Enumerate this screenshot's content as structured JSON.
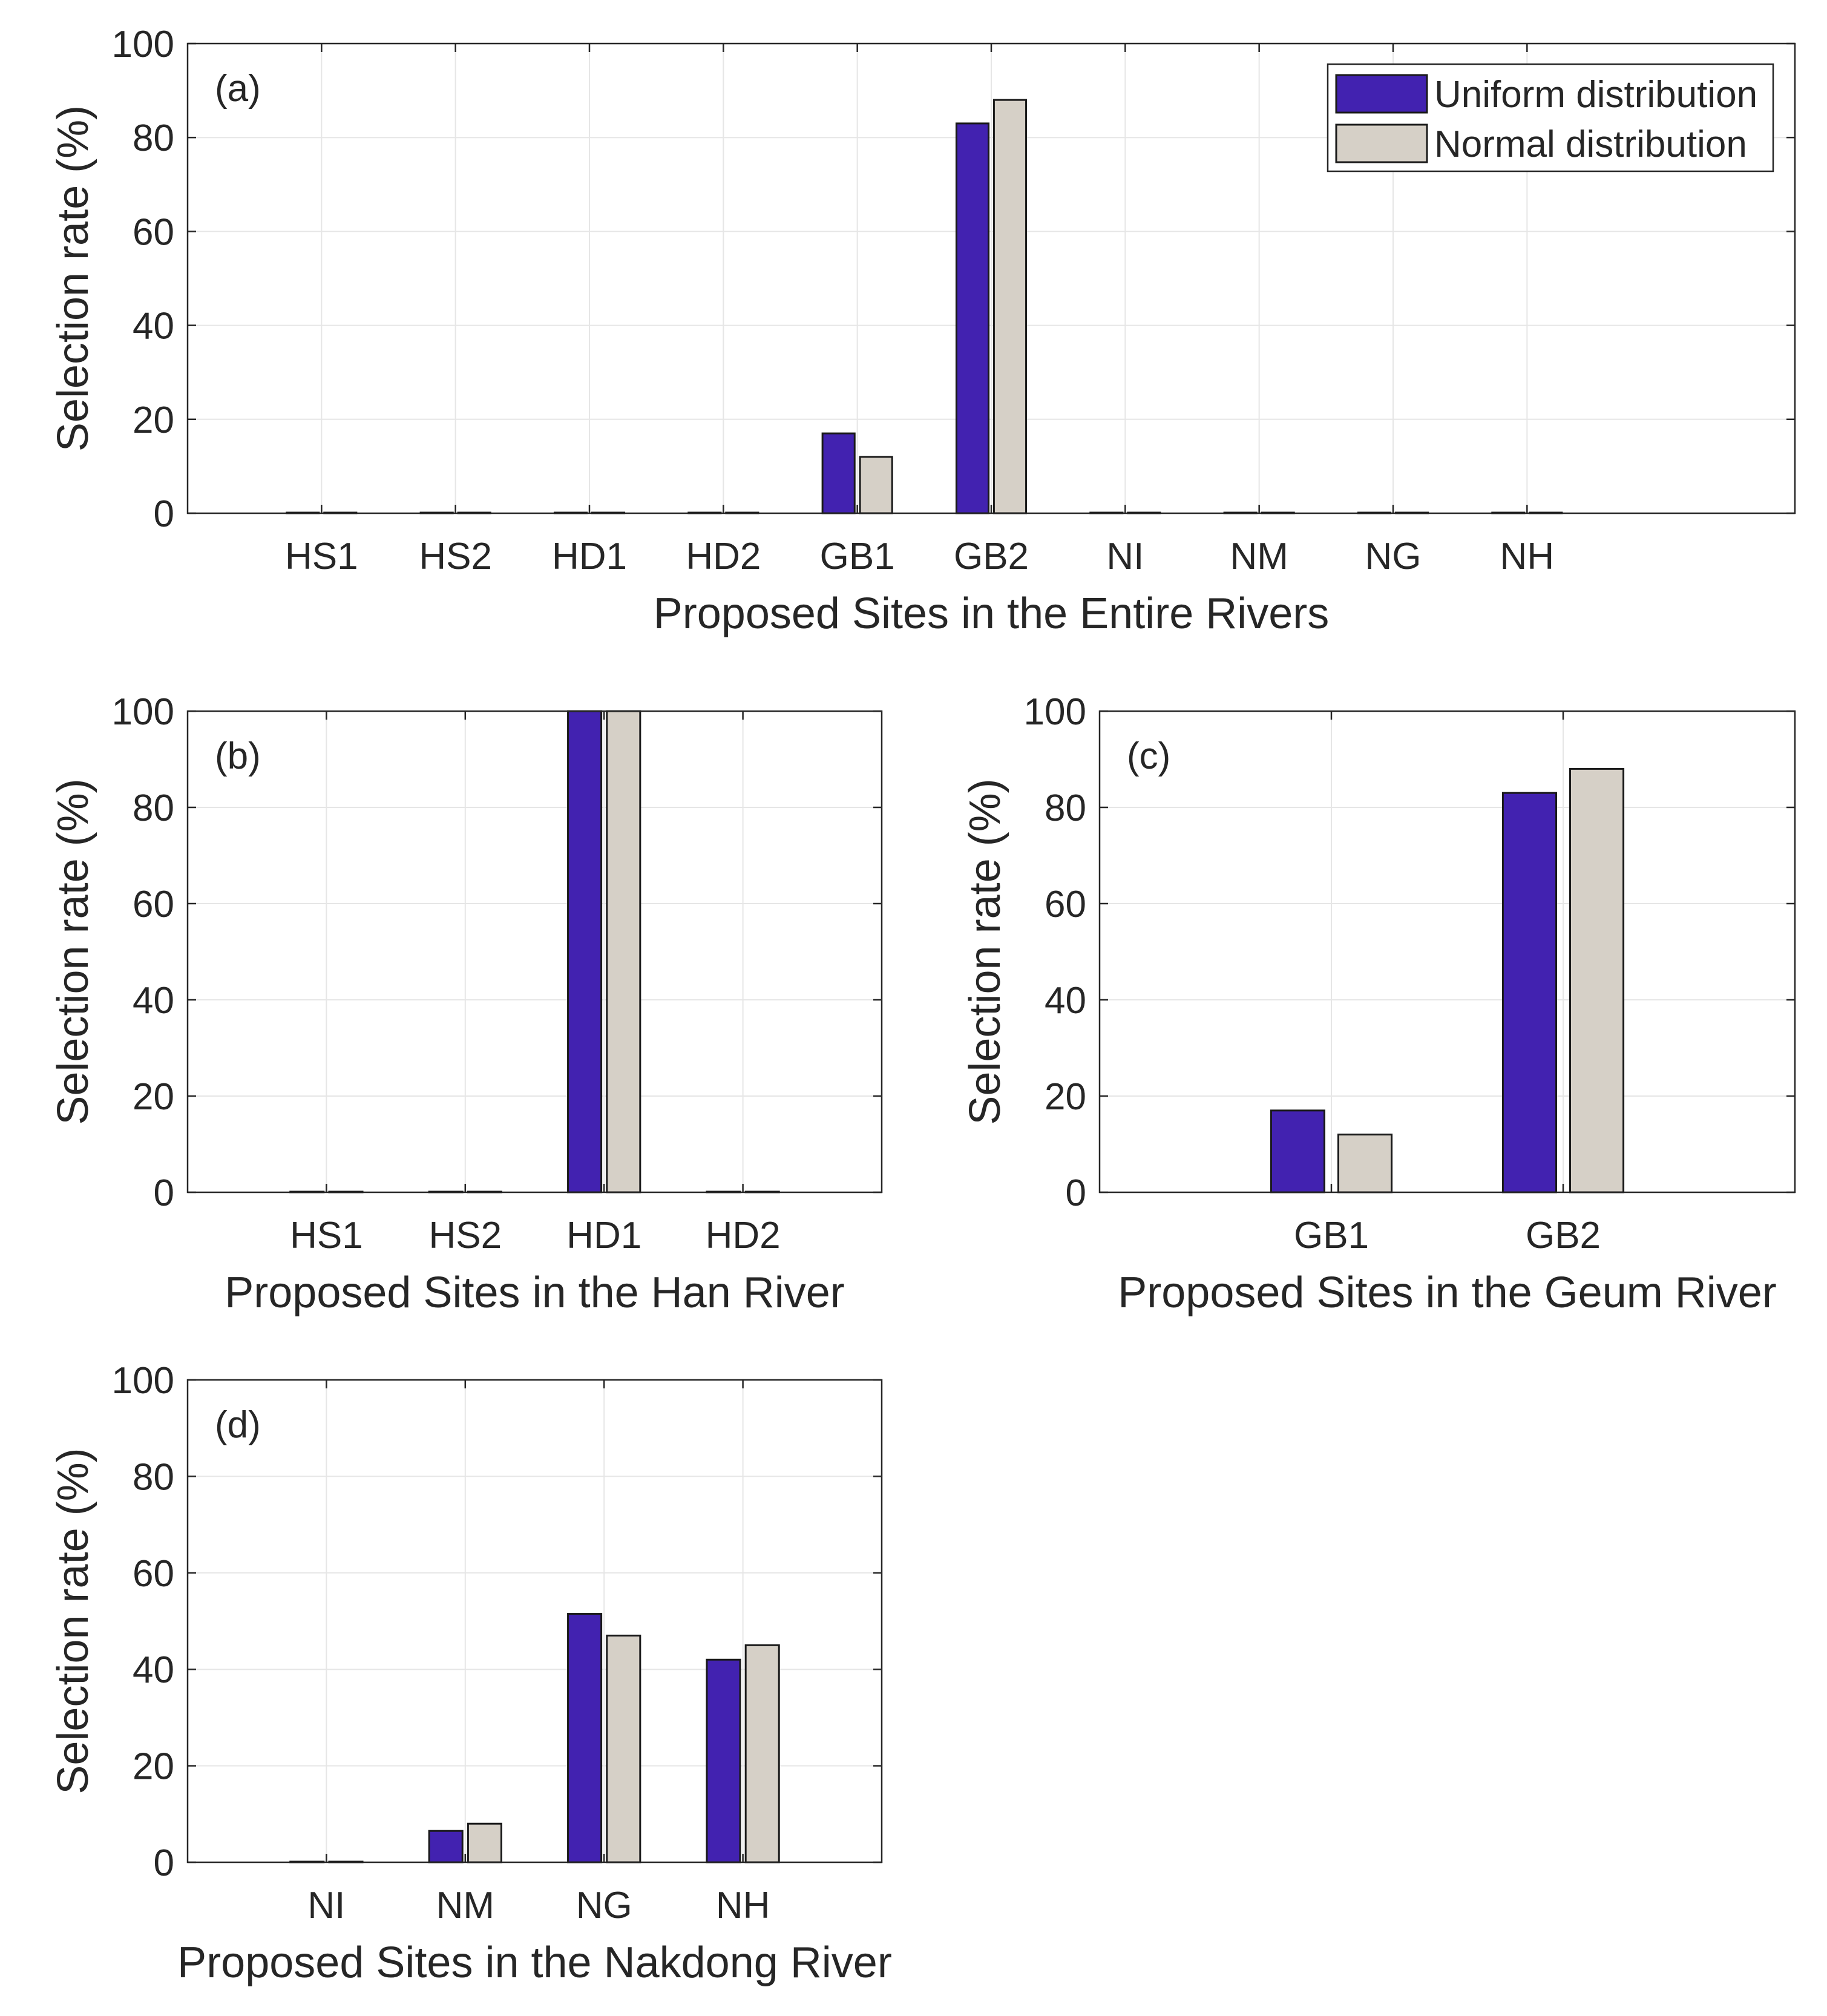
{
  "colors": {
    "uniform": "#4222b0",
    "normal": "#d6d0c7"
  },
  "legend": {
    "uniform_label": "Uniform distribution",
    "normal_label": "Normal distribution"
  },
  "chart_data": [
    {
      "id": "a",
      "type": "bar",
      "panel_label": "(a)",
      "xlabel": "Proposed Sites in the Entire Rivers",
      "ylabel": "Selection rate (%)",
      "ylim": [
        0,
        100
      ],
      "yticks": [
        0,
        20,
        40,
        60,
        80,
        100
      ],
      "grid": true,
      "legend_position": "top-right",
      "categories": [
        "HS1",
        "HS2",
        "HD1",
        "HD2",
        "GB1",
        "GB2",
        "NI",
        "NM",
        "NG",
        "NH"
      ],
      "series": [
        {
          "name": "Uniform distribution",
          "values": [
            0,
            0,
            0,
            0,
            17,
            83,
            0,
            0,
            0,
            0
          ]
        },
        {
          "name": "Normal distribution",
          "values": [
            0,
            0,
            0,
            0,
            12,
            88,
            0,
            0,
            0,
            0
          ]
        }
      ]
    },
    {
      "id": "b",
      "type": "bar",
      "panel_label": "(b)",
      "xlabel": "Proposed Sites in the Han River",
      "ylabel": "Selection rate (%)",
      "ylim": [
        0,
        100
      ],
      "yticks": [
        0,
        20,
        40,
        60,
        80,
        100
      ],
      "grid": true,
      "categories": [
        "HS1",
        "HS2",
        "HD1",
        "HD2"
      ],
      "series": [
        {
          "name": "Uniform distribution",
          "values": [
            0,
            0,
            100,
            0
          ]
        },
        {
          "name": "Normal distribution",
          "values": [
            0,
            0,
            100,
            0
          ]
        }
      ]
    },
    {
      "id": "c",
      "type": "bar",
      "panel_label": "(c)",
      "xlabel": "Proposed Sites in the Geum River",
      "ylabel": "Selection rate (%)",
      "ylim": [
        0,
        100
      ],
      "yticks": [
        0,
        20,
        40,
        60,
        80,
        100
      ],
      "grid": true,
      "categories": [
        "GB1",
        "GB2"
      ],
      "series": [
        {
          "name": "Uniform distribution",
          "values": [
            17,
            83
          ]
        },
        {
          "name": "Normal distribution",
          "values": [
            12,
            88
          ]
        }
      ]
    },
    {
      "id": "d",
      "type": "bar",
      "panel_label": "(d)",
      "xlabel": "Proposed Sites in the Nakdong River",
      "ylabel": "Selection rate (%)",
      "ylim": [
        0,
        100
      ],
      "yticks": [
        0,
        20,
        40,
        60,
        80,
        100
      ],
      "grid": true,
      "categories": [
        "NI",
        "NM",
        "NG",
        "NH"
      ],
      "series": [
        {
          "name": "Uniform distribution",
          "values": [
            0,
            6.5,
            51.5,
            42
          ]
        },
        {
          "name": "Normal distribution",
          "values": [
            0,
            8,
            47,
            45
          ]
        }
      ]
    }
  ]
}
